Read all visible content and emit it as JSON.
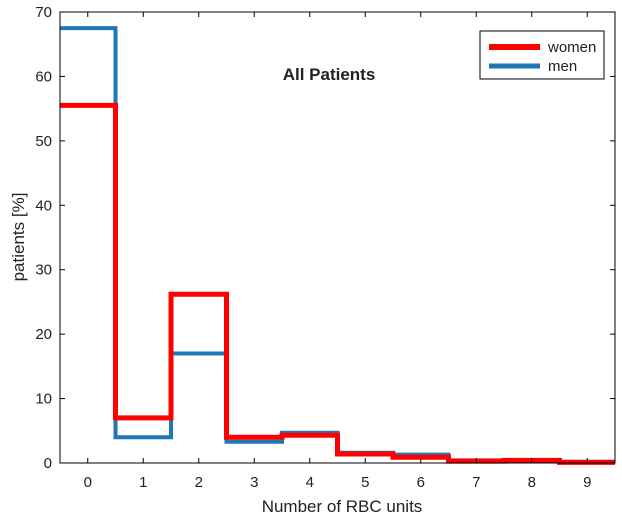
{
  "chart_data": {
    "type": "line",
    "step": "mid",
    "title": "All Patients",
    "xlabel": "Number of RBC units",
    "ylabel": "patients [%]",
    "x": [
      0,
      1,
      2,
      3,
      4,
      5,
      6,
      7,
      8,
      9
    ],
    "xlim": [
      -0.5,
      9.5
    ],
    "ylim": [
      0,
      70
    ],
    "xticks": [
      "0",
      "1",
      "2",
      "3",
      "4",
      "5",
      "6",
      "7",
      "8",
      "9"
    ],
    "yticks": [
      "0",
      "10",
      "20",
      "30",
      "40",
      "50",
      "60",
      "70"
    ],
    "grid": false,
    "legend_position": "top-right",
    "series": [
      {
        "name": "men",
        "color": "#1f77b4",
        "values": [
          67.5,
          4.0,
          17.0,
          3.3,
          4.7,
          1.6,
          1.3,
          0.4,
          0.4,
          0.2
        ]
      },
      {
        "name": "women",
        "color": "#ff0000",
        "values": [
          55.5,
          7.0,
          26.2,
          4.0,
          4.3,
          1.4,
          0.9,
          0.3,
          0.4,
          0.1
        ]
      }
    ]
  }
}
